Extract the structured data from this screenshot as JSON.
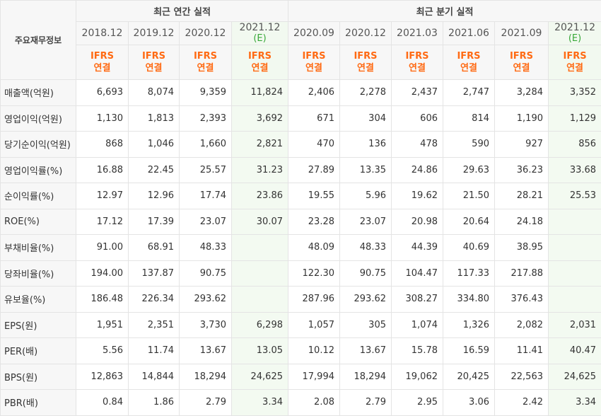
{
  "table": {
    "title": "주요재무정보",
    "annual_group": "최근 연간 실적",
    "quarter_group": "최근 분기 실적",
    "columns": [
      {
        "period": "2018.12",
        "est": "",
        "ifrs": "IFRS",
        "basis": "연결",
        "is_estimate": false
      },
      {
        "period": "2019.12",
        "est": "",
        "ifrs": "IFRS",
        "basis": "연결",
        "is_estimate": false
      },
      {
        "period": "2020.12",
        "est": "",
        "ifrs": "IFRS",
        "basis": "연결",
        "is_estimate": false
      },
      {
        "period": "2021.12",
        "est": "(E)",
        "ifrs": "IFRS",
        "basis": "연결",
        "is_estimate": true
      },
      {
        "period": "2020.09",
        "est": "",
        "ifrs": "IFRS",
        "basis": "연결",
        "is_estimate": false
      },
      {
        "period": "2020.12",
        "est": "",
        "ifrs": "IFRS",
        "basis": "연결",
        "is_estimate": false
      },
      {
        "period": "2021.03",
        "est": "",
        "ifrs": "IFRS",
        "basis": "연결",
        "is_estimate": false
      },
      {
        "period": "2021.06",
        "est": "",
        "ifrs": "IFRS",
        "basis": "연결",
        "is_estimate": false
      },
      {
        "period": "2021.09",
        "est": "",
        "ifrs": "IFRS",
        "basis": "연결",
        "is_estimate": false
      },
      {
        "period": "2021.12",
        "est": "(E)",
        "ifrs": "IFRS",
        "basis": "연결",
        "is_estimate": true
      }
    ],
    "rows": [
      {
        "label": "매출액(억원)",
        "values": [
          "6,693",
          "8,074",
          "9,359",
          "11,824",
          "2,406",
          "2,278",
          "2,437",
          "2,747",
          "3,284",
          "3,352"
        ]
      },
      {
        "label": "영업이익(억원)",
        "values": [
          "1,130",
          "1,813",
          "2,393",
          "3,692",
          "671",
          "304",
          "606",
          "814",
          "1,190",
          "1,129"
        ]
      },
      {
        "label": "당기순이익(억원)",
        "values": [
          "868",
          "1,046",
          "1,660",
          "2,821",
          "470",
          "136",
          "478",
          "590",
          "927",
          "856"
        ]
      },
      {
        "label": "영업이익률(%)",
        "values": [
          "16.88",
          "22.45",
          "25.57",
          "31.23",
          "27.89",
          "13.35",
          "24.86",
          "29.63",
          "36.23",
          "33.68"
        ]
      },
      {
        "label": "순이익률(%)",
        "values": [
          "12.97",
          "12.96",
          "17.74",
          "23.86",
          "19.55",
          "5.96",
          "19.62",
          "21.50",
          "28.21",
          "25.53"
        ]
      },
      {
        "label": "ROE(%)",
        "values": [
          "17.12",
          "17.39",
          "23.07",
          "30.07",
          "23.28",
          "23.07",
          "20.98",
          "20.64",
          "24.18",
          ""
        ]
      },
      {
        "label": "부채비율(%)",
        "values": [
          "91.00",
          "68.91",
          "48.33",
          "",
          "48.09",
          "48.33",
          "44.39",
          "40.69",
          "38.95",
          ""
        ]
      },
      {
        "label": "당좌비율(%)",
        "values": [
          "194.00",
          "137.87",
          "90.75",
          "",
          "122.30",
          "90.75",
          "104.47",
          "117.33",
          "217.88",
          ""
        ]
      },
      {
        "label": "유보율(%)",
        "values": [
          "186.48",
          "226.34",
          "293.62",
          "",
          "287.96",
          "293.62",
          "308.27",
          "334.80",
          "376.43",
          ""
        ]
      },
      {
        "label": "EPS(원)",
        "values": [
          "1,951",
          "2,351",
          "3,730",
          "6,298",
          "1,057",
          "305",
          "1,074",
          "1,326",
          "2,082",
          "2,031"
        ]
      },
      {
        "label": "PER(배)",
        "values": [
          "5.56",
          "11.74",
          "13.67",
          "13.05",
          "10.12",
          "13.67",
          "15.78",
          "16.59",
          "11.41",
          "40.47"
        ]
      },
      {
        "label": "BPS(원)",
        "values": [
          "12,863",
          "14,844",
          "18,294",
          "24,625",
          "17,994",
          "18,294",
          "19,062",
          "20,425",
          "22,563",
          "24,625"
        ]
      },
      {
        "label": "PBR(배)",
        "values": [
          "0.84",
          "1.86",
          "2.79",
          "3.34",
          "2.08",
          "2.79",
          "2.95",
          "3.06",
          "2.42",
          "3.34"
        ]
      }
    ],
    "group_starts": [
      0,
      3,
      9
    ]
  }
}
